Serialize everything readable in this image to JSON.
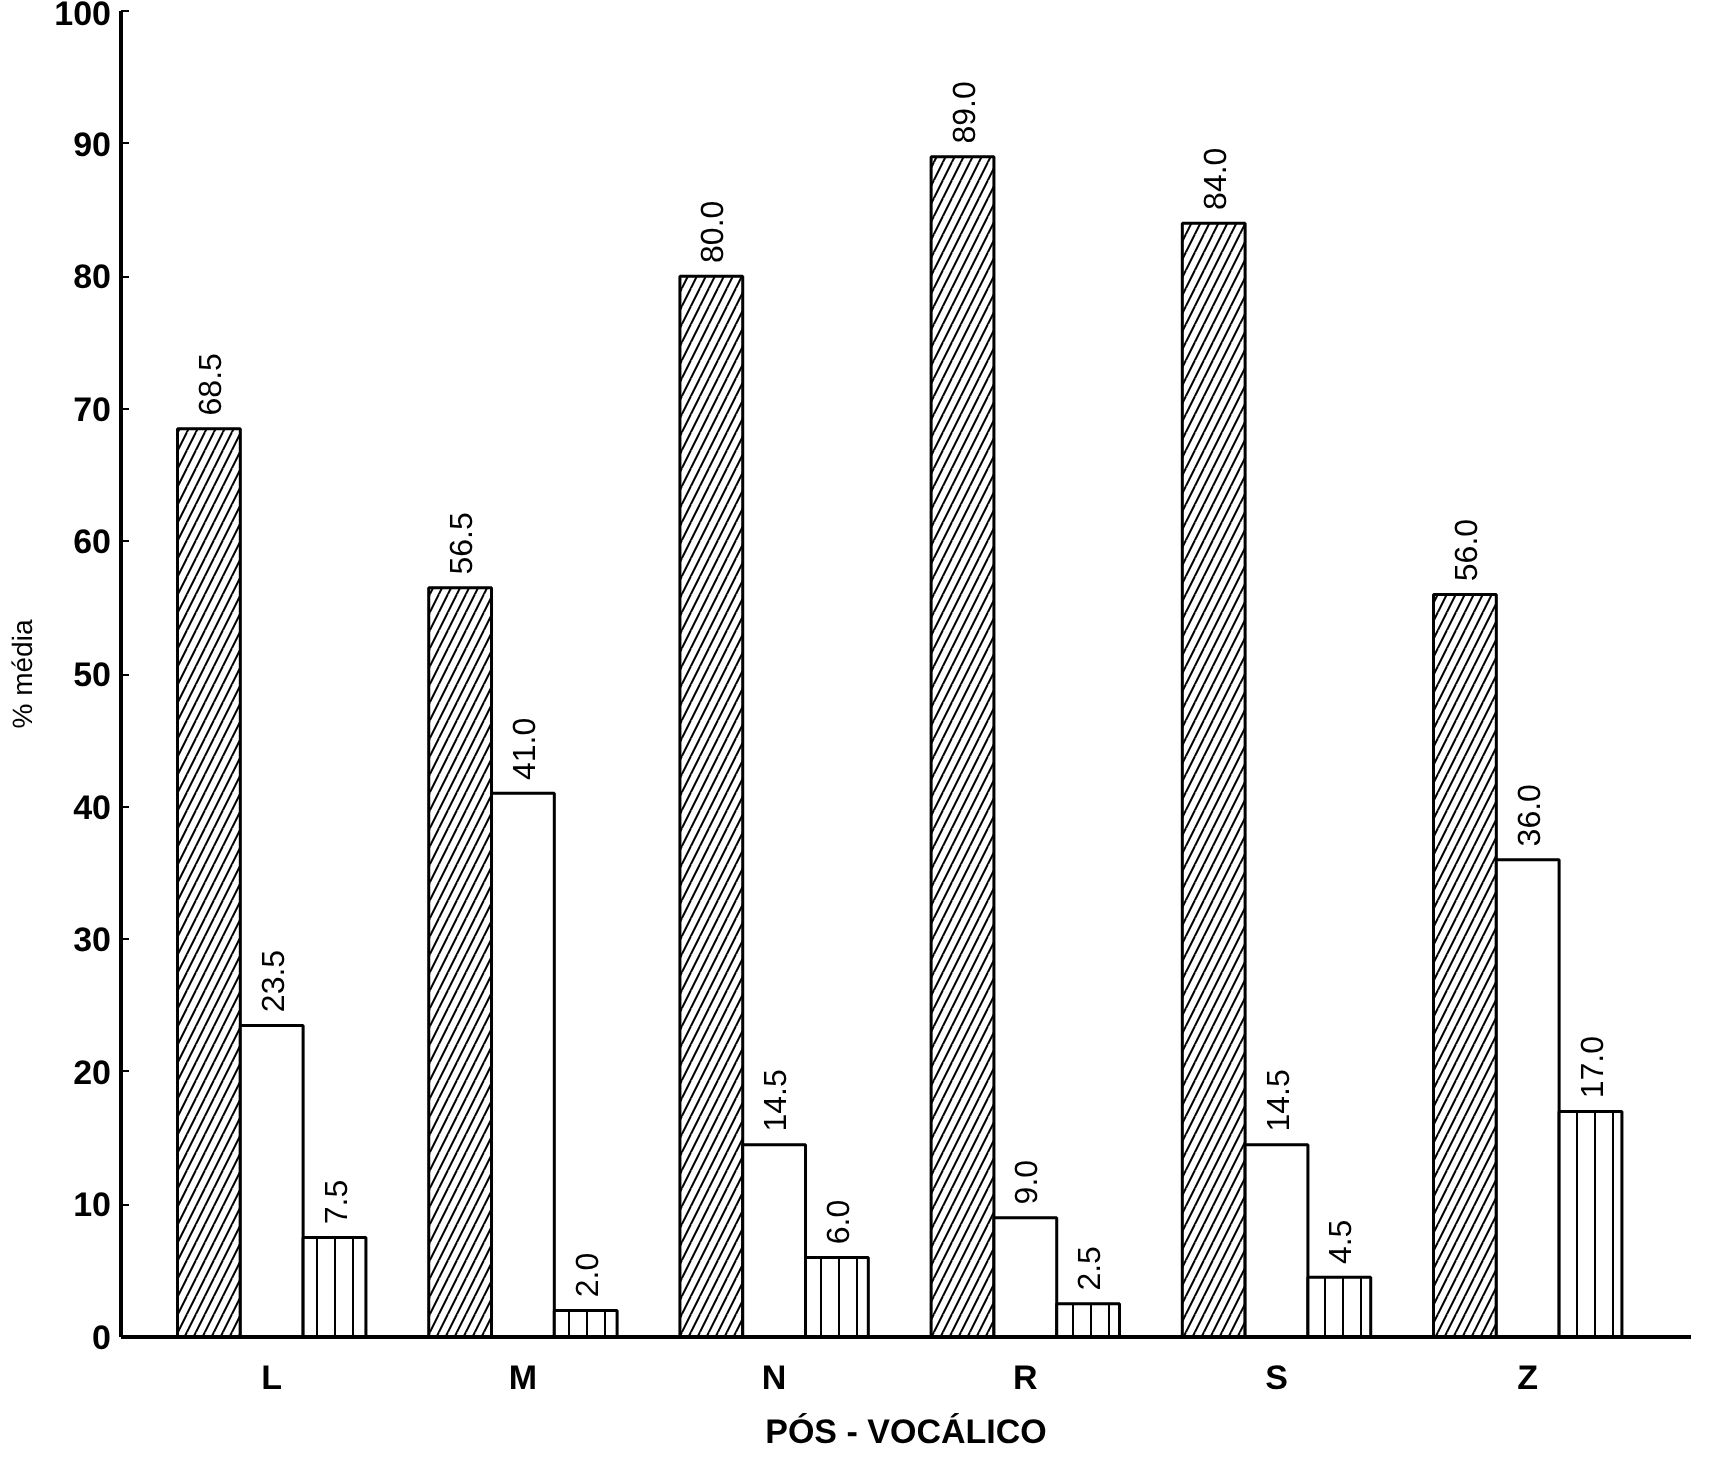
{
  "chart_data": {
    "type": "bar",
    "xlabel": "PÓS - VOCÁLICO",
    "ylabel": "% média",
    "categories": [
      "L",
      "M",
      "N",
      "R",
      "S",
      "Z"
    ],
    "series": [
      {
        "color": "#ffffff",
        "values": [
          68.5,
          56.5,
          80.0,
          89.0,
          84.0,
          56.0
        ],
        "value_labels": [
          "68.5",
          "56.5",
          "80.0",
          "89.0",
          "84.0",
          "56.0"
        ]
      },
      {
        "color": "#ffffff",
        "values": [
          23.5,
          41.0,
          14.5,
          9.0,
          14.5,
          36.0
        ],
        "value_labels": [
          "23.5",
          "41.0",
          "14.5",
          "9.0",
          "14.5",
          "36.0"
        ]
      },
      {
        "color": "#ffffff",
        "values": [
          7.5,
          2.0,
          6.0,
          2.5,
          4.5,
          17.0
        ],
        "value_labels": [
          "7.5",
          "2.0",
          "6.0",
          "2.5",
          "4.5",
          "17.0"
        ]
      }
    ],
    "ylim": [
      0,
      100
    ],
    "yticks": [
      0,
      10,
      20,
      30,
      40,
      50,
      60,
      70,
      80,
      90,
      100
    ],
    "grid": false
  }
}
